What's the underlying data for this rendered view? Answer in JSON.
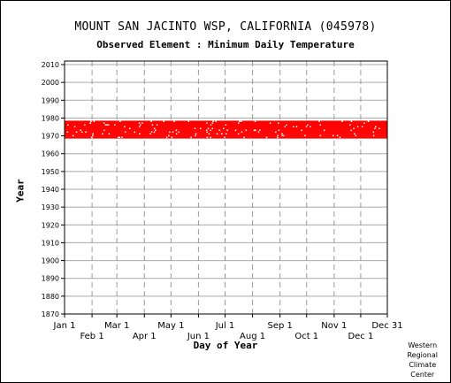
{
  "chart_data": {
    "type": "scatter",
    "title": "MOUNT SAN JACINTO WSP, CALIFORNIA   (045978)",
    "subtitle": "Observed Element : Minimum Daily Temperature",
    "xlabel": "Day of Year",
    "ylabel": "Year",
    "xlim": [
      1,
      365
    ],
    "ylim": [
      1870,
      2012
    ],
    "yticks": [
      1870,
      1880,
      1890,
      1900,
      1910,
      1920,
      1930,
      1940,
      1950,
      1960,
      1970,
      1980,
      1990,
      2000,
      2010
    ],
    "xticks_top": [
      {
        "label": "Jan 1",
        "day": 1
      },
      {
        "label": "Mar 1",
        "day": 60
      },
      {
        "label": "May 1",
        "day": 121
      },
      {
        "label": "Jul 1",
        "day": 182
      },
      {
        "label": "Sep 1",
        "day": 244
      },
      {
        "label": "Nov 1",
        "day": 305
      },
      {
        "label": "Dec 31",
        "day": 365
      }
    ],
    "xticks_bottom": [
      {
        "label": "Feb 1",
        "day": 32
      },
      {
        "label": "Apr 1",
        "day": 91
      },
      {
        "label": "Jun 1",
        "day": 152
      },
      {
        "label": "Aug 1",
        "day": 213
      },
      {
        "label": "Oct 1",
        "day": 274
      },
      {
        "label": "Dec 1",
        "day": 335
      }
    ],
    "grid": true,
    "series": [
      {
        "years": [
          1969,
          1978
        ],
        "days": [
          1,
          365
        ],
        "color": "#ff0000"
      }
    ]
  },
  "credit": [
    "Western",
    "Regional",
    "Climate",
    "Center"
  ]
}
